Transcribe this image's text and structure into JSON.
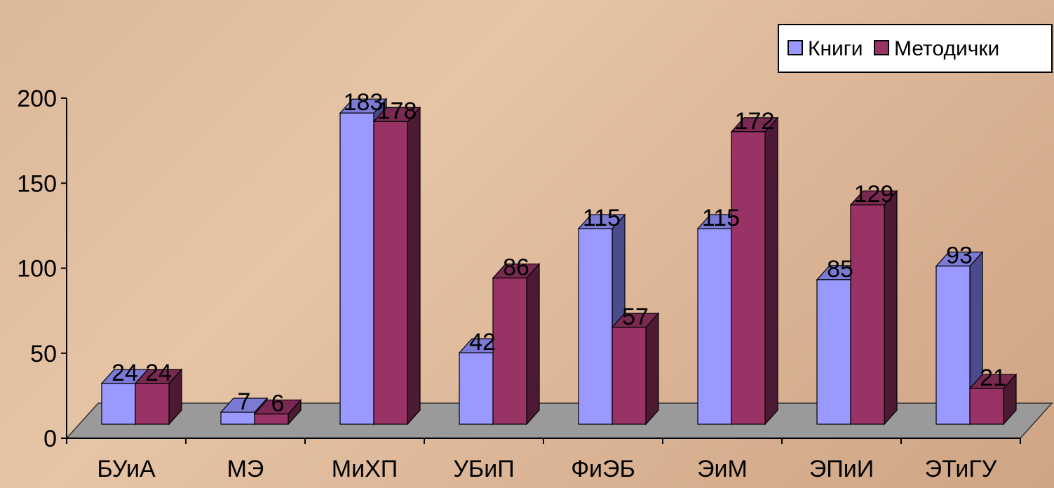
{
  "chart_data": {
    "type": "bar",
    "categories": [
      "БУиА",
      "МЭ",
      "МиХП",
      "УБиП",
      "ФиЭБ",
      "ЭиМ",
      "ЭПиИ",
      "ЭТиГУ"
    ],
    "series": [
      {
        "name": "Книги",
        "values": [
          24,
          7,
          183,
          42,
          115,
          115,
          85,
          93
        ]
      },
      {
        "name": "Методички",
        "values": [
          24,
          6,
          178,
          86,
          57,
          172,
          129,
          21
        ]
      }
    ],
    "yticks": [
      "0",
      "50",
      "100",
      "150",
      "200"
    ],
    "ylim": [
      0,
      200
    ],
    "legend_position": "top-right",
    "grid": false,
    "three_d": true,
    "colors": {
      "Книги": {
        "front": "#9999ff",
        "top": "#7b7bd6",
        "side": "#4a4a8c"
      },
      "Методички": {
        "front": "#993366",
        "top": "#7a2952",
        "side": "#4d1a33"
      },
      "floor": "#9a9a9a",
      "axis": "#000000"
    }
  }
}
